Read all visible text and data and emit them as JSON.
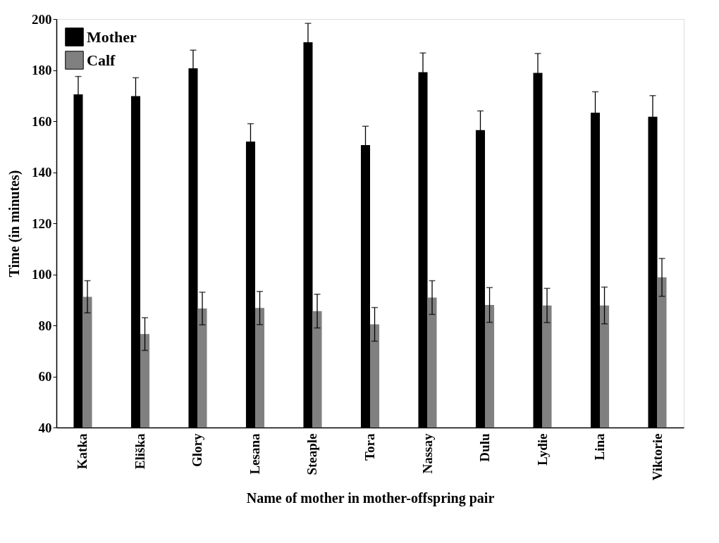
{
  "chart_data": {
    "type": "bar",
    "xlabel": "Name of mother in mother-offspring pair",
    "ylabel": "Time (in minutes)",
    "categories": [
      "Katka",
      "Eliška",
      "Glory",
      "Lesana",
      "Steaple",
      "Tora",
      "Nassay",
      "Dulu",
      "Lydie",
      "Lina",
      "Viktorie"
    ],
    "series": [
      {
        "name": "Mother",
        "color": "#000000",
        "values": [
          170.5,
          169.8,
          180.7,
          152,
          190.9,
          150.6,
          179.2,
          156.5,
          178.9,
          163.3,
          161.7
        ],
        "errors": [
          7,
          7.2,
          7.1,
          7,
          7.4,
          7.4,
          7.5,
          7.5,
          7.6,
          8.2,
          8.3
        ]
      },
      {
        "name": "Calf",
        "color": "#808080",
        "values": [
          91.2,
          76.6,
          86.6,
          86.8,
          85.6,
          80.4,
          90.9,
          88,
          87.8,
          87.8,
          98.8
        ],
        "errors": [
          6.3,
          6.4,
          6.4,
          6.5,
          6.6,
          6.6,
          6.6,
          6.8,
          6.7,
          7.2,
          7.4
        ]
      }
    ],
    "ylim": [
      40,
      200
    ],
    "yticks": [
      40,
      60,
      80,
      100,
      120,
      140,
      160,
      180,
      200
    ],
    "grid": false,
    "legend": "top left"
  }
}
